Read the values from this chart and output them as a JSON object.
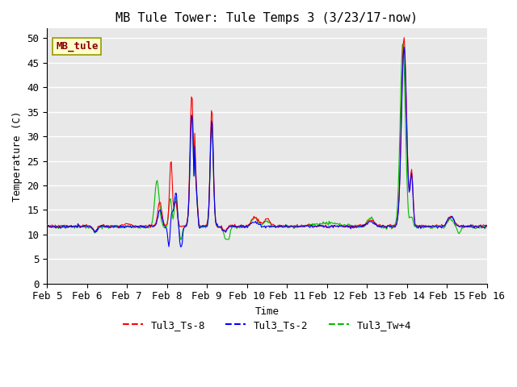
{
  "title": "MB Tule Tower: Tule Temps 3 (3/23/17-now)",
  "xlabel": "Time",
  "ylabel": "Temperature (C)",
  "ylim": [
    0,
    52
  ],
  "yticks": [
    0,
    5,
    10,
    15,
    20,
    25,
    30,
    35,
    40,
    45,
    50
  ],
  "background_color": "#e8e8e8",
  "legend_label": "MB_tule",
  "series_colors": {
    "red": "#ff0000",
    "blue": "#0000ff",
    "green": "#00aa00"
  },
  "xtick_labels": [
    "Feb 5",
    "Feb 6",
    "Feb 7",
    "Feb 8",
    "Feb 9",
    "Feb 10",
    "Feb 11",
    "Feb 12",
    "Feb 13",
    "Feb 14",
    "Feb 15",
    "Feb 16"
  ],
  "title_fontsize": 11,
  "axis_fontsize": 9,
  "tick_fontsize": 9,
  "legend_fontsize": 9
}
